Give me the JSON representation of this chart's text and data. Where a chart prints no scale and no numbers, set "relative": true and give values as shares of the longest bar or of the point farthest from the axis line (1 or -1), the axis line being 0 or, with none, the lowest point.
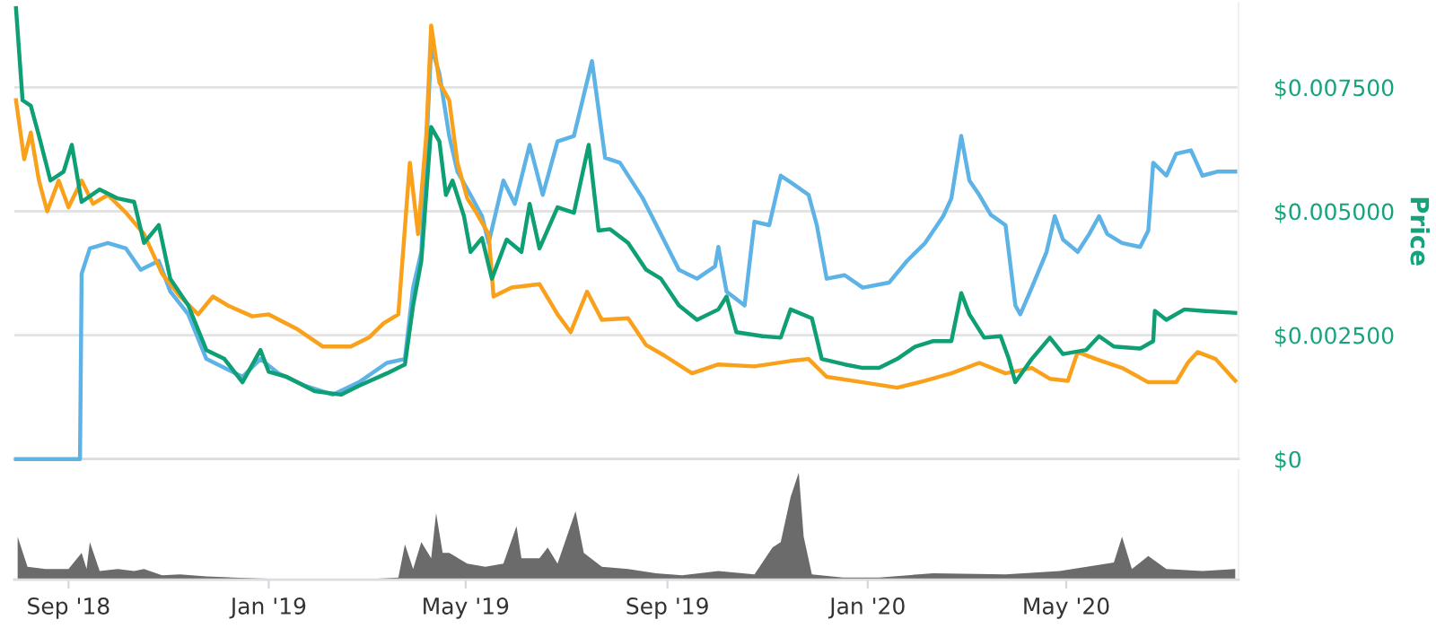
{
  "chart_data": [
    {
      "type": "line",
      "ylabel": "Price",
      "xlim": [
        "2018-07-30",
        "2020-08-14"
      ],
      "ylim": [
        0,
        0.0092
      ],
      "yticks": [
        {
          "value": 0,
          "label": "$0"
        },
        {
          "value": 0.0025,
          "label": "$0.002500"
        },
        {
          "value": 0.005,
          "label": "$0.005000"
        },
        {
          "value": 0.0075,
          "label": "$0.007500"
        }
      ],
      "grid": "y",
      "tick_labels": "y",
      "legend": false,
      "series": [
        {
          "color": "#5db3e6",
          "x": [
            "2018-07-31",
            "2018-09-08",
            "2018-09-09",
            "2018-09-14",
            "2018-09-25",
            "2018-10-06",
            "2018-10-15",
            "2018-10-26",
            "2018-11-02",
            "2018-11-13",
            "2018-11-24",
            "2018-12-05",
            "2018-12-16",
            "2018-12-27",
            "2019-01-07",
            "2019-01-23",
            "2019-02-09",
            "2019-02-25",
            "2019-03-14",
            "2019-03-25",
            "2019-03-30",
            "2019-04-04",
            "2019-04-10",
            "2019-04-15",
            "2019-04-21",
            "2019-04-26",
            "2019-05-04",
            "2019-05-11",
            "2019-05-15",
            "2019-05-24",
            "2019-05-31",
            "2019-06-09",
            "2019-06-17",
            "2019-06-26",
            "2019-07-06",
            "2019-07-17",
            "2019-07-25",
            "2019-08-03",
            "2019-08-17",
            "2019-08-28",
            "2019-09-08",
            "2019-09-19",
            "2019-09-30",
            "2019-10-02",
            "2019-10-07",
            "2019-10-18",
            "2019-10-24",
            "2019-11-02",
            "2019-11-09",
            "2019-11-17",
            "2019-11-26",
            "2019-12-01",
            "2019-12-07",
            "2019-12-18",
            "2019-12-29",
            "2020-01-14",
            "2020-01-25",
            "2020-02-05",
            "2020-02-16",
            "2020-02-21",
            "2020-02-27",
            "2020-03-03",
            "2020-03-09",
            "2020-03-16",
            "2020-03-25",
            "2020-03-27",
            "2020-03-31",
            "2020-04-03",
            "2020-04-10",
            "2020-04-19",
            "2020-04-24",
            "2020-04-29",
            "2020-05-08",
            "2020-05-15",
            "2020-05-21",
            "2020-05-26",
            "2020-06-04",
            "2020-06-15",
            "2020-06-20",
            "2020-06-23",
            "2020-07-01",
            "2020-07-07",
            "2020-07-16",
            "2020-07-23",
            "2020-08-01",
            "2020-08-12"
          ],
          "values": [
            0,
            0,
            0.00374,
            0.00425,
            0.00436,
            0.00425,
            0.00382,
            0.004,
            0.00338,
            0.00292,
            0.00202,
            0.00184,
            0.00166,
            0.00202,
            0.00173,
            0.00148,
            0.0013,
            0.00155,
            0.00194,
            0.00202,
            0.00346,
            0.00418,
            0.00832,
            0.00778,
            0.00652,
            0.0058,
            0.00533,
            0.0049,
            0.00436,
            0.00562,
            0.00515,
            0.00634,
            0.00533,
            0.00641,
            0.00652,
            0.00803,
            0.00608,
            0.00598,
            0.00526,
            0.00454,
            0.00382,
            0.00364,
            0.00389,
            0.00428,
            0.00338,
            0.0031,
            0.00479,
            0.00472,
            0.00572,
            0.00554,
            0.00533,
            0.00472,
            0.00364,
            0.00371,
            0.00346,
            0.00356,
            0.004,
            0.00436,
            0.0049,
            0.00526,
            0.00652,
            0.00562,
            0.00533,
            0.00493,
            0.00472,
            0.00418,
            0.0031,
            0.00292,
            0.00346,
            0.00418,
            0.0049,
            0.00443,
            0.00418,
            0.00454,
            0.0049,
            0.00454,
            0.00436,
            0.00428,
            0.00461,
            0.00598,
            0.00572,
            0.00616,
            0.00623,
            0.00572,
            0.0058,
            0.0058
          ]
        },
        {
          "color": "#f9a11b",
          "x": [
            "2018-07-31",
            "2018-08-05",
            "2018-08-09",
            "2018-08-14",
            "2018-08-19",
            "2018-08-26",
            "2018-09-01",
            "2018-09-09",
            "2018-09-16",
            "2018-09-25",
            "2018-10-06",
            "2018-10-17",
            "2018-10-28",
            "2018-11-08",
            "2018-11-19",
            "2018-11-28",
            "2018-12-07",
            "2018-12-22",
            "2019-01-01",
            "2019-01-18",
            "2019-02-03",
            "2019-02-20",
            "2019-03-03",
            "2019-03-12",
            "2019-03-21",
            "2019-03-28",
            "2019-04-02",
            "2019-04-07",
            "2019-04-10",
            "2019-04-15",
            "2019-04-21",
            "2019-04-26",
            "2019-05-02",
            "2019-05-07",
            "2019-05-15",
            "2019-05-18",
            "2019-05-29",
            "2019-06-15",
            "2019-06-26",
            "2019-07-04",
            "2019-07-14",
            "2019-07-23",
            "2019-08-08",
            "2019-08-19",
            "2019-08-30",
            "2019-09-16",
            "2019-10-02",
            "2019-10-24",
            "2019-11-15",
            "2019-11-26",
            "2019-12-07",
            "2019-12-29",
            "2020-01-19",
            "2020-02-05",
            "2020-02-21",
            "2020-03-09",
            "2020-03-25",
            "2020-04-10",
            "2020-04-21",
            "2020-05-02",
            "2020-05-08",
            "2020-05-19",
            "2020-06-04",
            "2020-06-20",
            "2020-07-07",
            "2020-07-14",
            "2020-07-20",
            "2020-07-31",
            "2020-08-12"
          ],
          "values": [
            0.00724,
            0.00605,
            0.00659,
            0.00562,
            0.005,
            0.00562,
            0.00508,
            0.00562,
            0.00515,
            0.00533,
            0.00497,
            0.00454,
            0.00374,
            0.00328,
            0.00292,
            0.00328,
            0.0031,
            0.00288,
            0.00292,
            0.00263,
            0.00227,
            0.00227,
            0.00245,
            0.00274,
            0.00292,
            0.00598,
            0.00454,
            0.00652,
            0.00875,
            0.0076,
            0.00724,
            0.00598,
            0.00526,
            0.005,
            0.00454,
            0.00328,
            0.00346,
            0.00353,
            0.00292,
            0.00256,
            0.00338,
            0.00281,
            0.00284,
            0.0023,
            0.00209,
            0.00173,
            0.00191,
            0.00187,
            0.00198,
            0.00202,
            0.00166,
            0.00155,
            0.00144,
            0.00158,
            0.00173,
            0.00194,
            0.00173,
            0.00184,
            0.00162,
            0.00158,
            0.00216,
            0.00202,
            0.00184,
            0.00155,
            0.00155,
            0.00194,
            0.00216,
            0.00202,
            0.00158
          ]
        },
        {
          "color": "#0e9f74",
          "x": [
            "2018-07-31",
            "2018-08-04",
            "2018-08-09",
            "2018-08-14",
            "2018-08-21",
            "2018-08-29",
            "2018-09-03",
            "2018-09-09",
            "2018-09-20",
            "2018-10-01",
            "2018-10-11",
            "2018-10-17",
            "2018-10-26",
            "2018-11-02",
            "2018-11-13",
            "2018-11-24",
            "2018-12-05",
            "2018-12-16",
            "2018-12-27",
            "2019-01-01",
            "2019-01-12",
            "2019-01-29",
            "2019-02-14",
            "2019-02-25",
            "2019-03-14",
            "2019-03-25",
            "2019-03-30",
            "2019-04-04",
            "2019-04-10",
            "2019-04-15",
            "2019-04-19",
            "2019-04-23",
            "2019-04-30",
            "2019-05-04",
            "2019-05-11",
            "2019-05-17",
            "2019-05-26",
            "2019-06-04",
            "2019-06-09",
            "2019-06-15",
            "2019-06-26",
            "2019-07-06",
            "2019-07-15",
            "2019-07-21",
            "2019-07-28",
            "2019-08-08",
            "2019-08-19",
            "2019-08-28",
            "2019-09-08",
            "2019-09-19",
            "2019-10-02",
            "2019-10-07",
            "2019-10-13",
            "2019-10-29",
            "2019-11-09",
            "2019-11-15",
            "2019-11-28",
            "2019-12-04",
            "2019-12-18",
            "2019-12-29",
            "2020-01-08",
            "2020-01-19",
            "2020-01-30",
            "2020-02-10",
            "2020-02-21",
            "2020-02-27",
            "2020-03-03",
            "2020-03-12",
            "2020-03-22",
            "2020-03-27",
            "2020-03-31",
            "2020-04-10",
            "2020-04-21",
            "2020-04-29",
            "2020-05-13",
            "2020-05-21",
            "2020-05-30",
            "2020-06-15",
            "2020-06-23",
            "2020-06-24",
            "2020-07-01",
            "2020-07-12",
            "2020-07-23",
            "2020-08-12"
          ],
          "values": [
            0.0091,
            0.00724,
            0.00713,
            0.00652,
            0.00562,
            0.0058,
            0.00634,
            0.00519,
            0.00544,
            0.00526,
            0.00519,
            0.00436,
            0.00472,
            0.00364,
            0.0031,
            0.0022,
            0.00202,
            0.00155,
            0.0022,
            0.00176,
            0.00166,
            0.00137,
            0.0013,
            0.00148,
            0.00173,
            0.00191,
            0.0031,
            0.004,
            0.0067,
            0.00641,
            0.00533,
            0.00562,
            0.0049,
            0.00418,
            0.00446,
            0.00364,
            0.00443,
            0.00418,
            0.00515,
            0.00425,
            0.00508,
            0.00497,
            0.00634,
            0.00461,
            0.00464,
            0.00436,
            0.00382,
            0.00364,
            0.0031,
            0.00281,
            0.00302,
            0.00328,
            0.00256,
            0.00248,
            0.00245,
            0.00302,
            0.00284,
            0.00202,
            0.00191,
            0.00184,
            0.00184,
            0.00202,
            0.00227,
            0.00238,
            0.00238,
            0.00335,
            0.00292,
            0.00245,
            0.00248,
            0.00202,
            0.00155,
            0.00202,
            0.00245,
            0.00212,
            0.0022,
            0.00248,
            0.00227,
            0.00223,
            0.00238,
            0.00299,
            0.00281,
            0.00302,
            0.00299,
            0.00295
          ]
        }
      ]
    },
    {
      "type": "area",
      "relative": true,
      "xlim": [
        "2018-07-30",
        "2020-08-14"
      ],
      "xticks": [
        {
          "value": "2018-09-01",
          "label": "Sep '18"
        },
        {
          "value": "2019-01-01",
          "label": "Jan '19"
        },
        {
          "value": "2019-05-01",
          "label": "May '19"
        },
        {
          "value": "2019-09-01",
          "label": "Sep '19"
        },
        {
          "value": "2020-01-01",
          "label": "Jan '20"
        },
        {
          "value": "2020-05-01",
          "label": "May '20"
        }
      ],
      "tick_labels": "x",
      "grid": false,
      "legend": false,
      "series": [
        {
          "color": "#6b6b6b",
          "x": [
            "2018-08-01",
            "2018-08-07",
            "2018-08-18",
            "2018-09-01",
            "2018-09-09",
            "2018-09-12",
            "2018-09-14",
            "2018-09-20",
            "2018-10-01",
            "2018-10-11",
            "2018-10-17",
            "2018-10-28",
            "2018-11-08",
            "2018-11-24",
            "2018-12-10",
            "2019-01-01",
            "2019-02-03",
            "2019-03-08",
            "2019-03-21",
            "2019-03-25",
            "2019-03-30",
            "2019-04-04",
            "2019-04-10",
            "2019-04-13",
            "2019-04-17",
            "2019-04-21",
            "2019-05-02",
            "2019-05-13",
            "2019-05-24",
            "2019-06-01",
            "2019-06-04",
            "2019-06-15",
            "2019-06-20",
            "2019-06-26",
            "2019-07-07",
            "2019-07-12",
            "2019-07-23",
            "2019-08-08",
            "2019-08-25",
            "2019-09-10",
            "2019-10-02",
            "2019-10-24",
            "2019-11-04",
            "2019-11-09",
            "2019-11-15",
            "2019-11-20",
            "2019-11-23",
            "2019-11-28",
            "2019-12-17",
            "2020-01-08",
            "2020-02-10",
            "2020-03-25",
            "2020-04-27",
            "2020-05-30",
            "2020-06-04",
            "2020-06-10",
            "2020-06-20",
            "2020-07-01",
            "2020-07-23",
            "2020-08-12"
          ],
          "values": [
            0.4,
            0.12,
            0.1,
            0.1,
            0.25,
            0.1,
            0.35,
            0.08,
            0.1,
            0.08,
            0.1,
            0.04,
            0.05,
            0.03,
            0.02,
            0.01,
            0.01,
            0.01,
            0.02,
            0.33,
            0.1,
            0.35,
            0.2,
            0.62,
            0.25,
            0.25,
            0.15,
            0.12,
            0.15,
            0.5,
            0.2,
            0.2,
            0.3,
            0.15,
            0.64,
            0.25,
            0.12,
            0.1,
            0.06,
            0.04,
            0.08,
            0.05,
            0.3,
            0.35,
            0.77,
            1,
            0.4,
            0.05,
            0.02,
            0.02,
            0.06,
            0.05,
            0.08,
            0.16,
            0.4,
            0.1,
            0.22,
            0.1,
            0.08,
            0.1
          ]
        }
      ]
    }
  ]
}
